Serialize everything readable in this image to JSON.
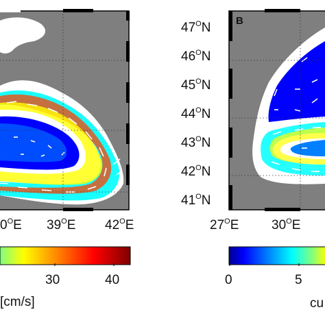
{
  "panel_a": {
    "lon_ticks": [
      {
        "deg": "0",
        "sup": "O",
        "hemi": "E"
      },
      {
        "deg": "39",
        "sup": "O",
        "hemi": "E"
      },
      {
        "deg": "42",
        "sup": "O",
        "hemi": "E"
      }
    ],
    "colorbar": {
      "ticks": [
        "30",
        "40"
      ],
      "unit": "[cm/s]"
    },
    "colors": {
      "land": "#ffffff",
      "sea_bg": "#7f7f7f"
    }
  },
  "panel_b": {
    "label": "B",
    "lat_ticks": [
      {
        "deg": "47",
        "sup": "O",
        "hemi": "N"
      },
      {
        "deg": "46",
        "sup": "O",
        "hemi": "N"
      },
      {
        "deg": "45",
        "sup": "O",
        "hemi": "N"
      },
      {
        "deg": "44",
        "sup": "O",
        "hemi": "N"
      },
      {
        "deg": "43",
        "sup": "O",
        "hemi": "N"
      },
      {
        "deg": "42",
        "sup": "O",
        "hemi": "N"
      },
      {
        "deg": "41",
        "sup": "O",
        "hemi": "N"
      }
    ],
    "lon_ticks": [
      {
        "deg": "27",
        "sup": "O",
        "hemi": "E"
      },
      {
        "deg": "30",
        "sup": "O",
        "hemi": "E"
      }
    ],
    "colorbar": {
      "ticks": [
        "0",
        "5"
      ],
      "unit_fragment": "cu"
    }
  },
  "colormap": [
    "#00008f",
    "#0000ff",
    "#0080ff",
    "#00ffff",
    "#80ff80",
    "#ffff00",
    "#ff8000",
    "#ff0000",
    "#800000"
  ]
}
